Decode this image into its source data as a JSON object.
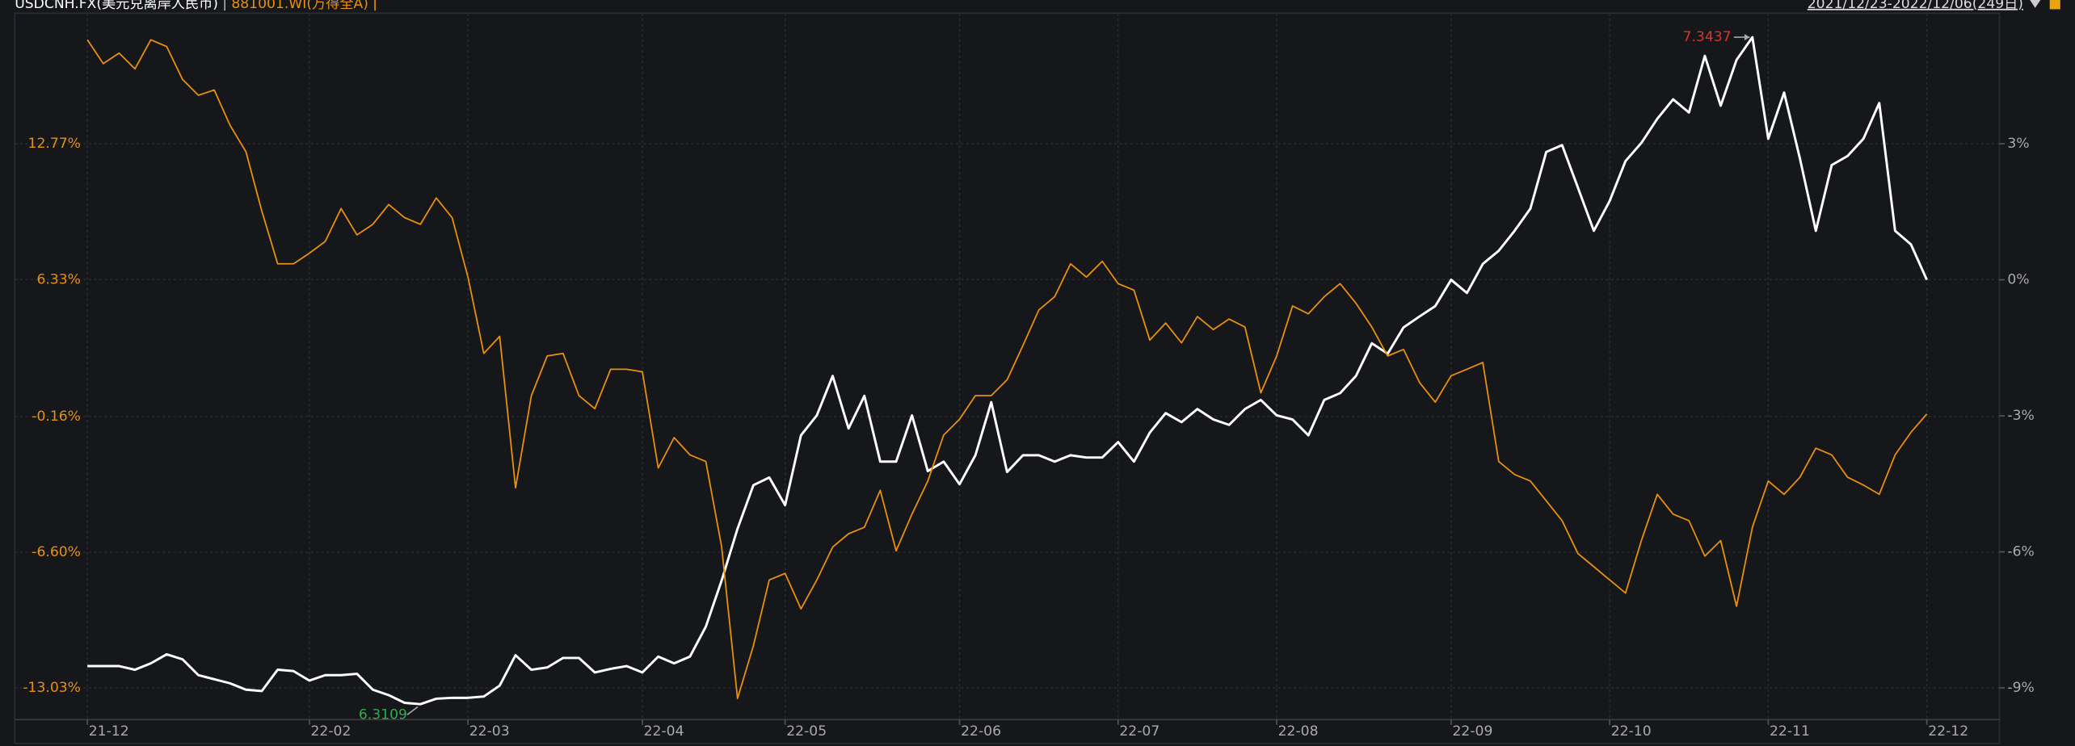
{
  "chart_data": {
    "type": "line",
    "date_range": "2021/12/23-2022/12/06(249日)",
    "categories": [
      "21-12",
      null,
      null,
      null,
      null,
      null,
      null,
      null,
      null,
      null,
      null,
      null,
      null,
      null,
      "22-02",
      null,
      null,
      null,
      null,
      null,
      null,
      null,
      null,
      null,
      "22-03",
      null,
      null,
      null,
      null,
      null,
      null,
      null,
      null,
      null,
      null,
      "22-04",
      null,
      null,
      null,
      null,
      null,
      null,
      null,
      null,
      "22-05",
      null,
      null,
      null,
      null,
      null,
      null,
      null,
      null,
      null,
      null,
      "22-06",
      null,
      null,
      null,
      null,
      null,
      null,
      null,
      null,
      null,
      "22-07",
      null,
      null,
      null,
      null,
      null,
      null,
      null,
      null,
      null,
      "22-08",
      null,
      null,
      null,
      null,
      null,
      null,
      null,
      null,
      null,
      null,
      "22-09",
      null,
      null,
      null,
      null,
      null,
      null,
      null,
      null,
      null,
      "22-10",
      null,
      null,
      null,
      null,
      null,
      null,
      null,
      null,
      null,
      "22-11",
      null,
      null,
      null,
      null,
      null,
      null,
      null,
      null,
      null,
      "22-12"
    ],
    "series": [
      {
        "name": "USDCNH.FX(美元兑离岸人民币)",
        "color": "#ffffff",
        "axis": "y2",
        "values": [
          -8.52,
          -8.52,
          -8.52,
          -8.6,
          -8.46,
          -8.26,
          -8.37,
          -8.72,
          -8.81,
          -8.9,
          -9.04,
          -9.07,
          -8.6,
          -8.63,
          -8.84,
          -8.72,
          -8.72,
          -8.69,
          -9.04,
          -9.16,
          -9.33,
          -9.36,
          -9.24,
          -9.22,
          -9.22,
          -9.19,
          -8.95,
          -8.28,
          -8.6,
          -8.55,
          -8.34,
          -8.34,
          -8.66,
          -8.58,
          -8.52,
          -8.66,
          -8.31,
          -8.46,
          -8.31,
          -7.65,
          -6.63,
          -5.49,
          -4.53,
          -4.36,
          -4.97,
          -3.43,
          -2.99,
          -2.12,
          -3.28,
          -2.56,
          -4.01,
          -4.01,
          -2.99,
          -4.22,
          -4.01,
          -4.51,
          -3.87,
          -2.7,
          -4.24,
          -3.87,
          -3.87,
          -4.01,
          -3.87,
          -3.92,
          -3.92,
          -3.58,
          -4.01,
          -3.37,
          -2.94,
          -3.14,
          -2.85,
          -3.08,
          -3.2,
          -2.85,
          -2.65,
          -2.99,
          -3.08,
          -3.43,
          -2.65,
          -2.5,
          -2.12,
          -1.4,
          -1.63,
          -1.05,
          -0.81,
          -0.58,
          0,
          -0.29,
          0.35,
          0.64,
          1.08,
          1.57,
          2.82,
          2.97,
          2.03,
          1.08,
          1.74,
          2.62,
          3.02,
          3.55,
          3.98,
          3.69,
          4.94,
          3.84,
          4.85,
          5.35,
          3.11,
          4.13,
          2.67,
          1.08,
          2.53,
          2.73,
          3.11,
          3.9,
          1.08,
          0.78,
          0
        ]
      },
      {
        "name": "881001.WI(万得全A)",
        "color": "#e8900c",
        "values": [
          17.7,
          16.57,
          17.07,
          16.32,
          17.7,
          17.38,
          15.82,
          15.07,
          15.32,
          13.64,
          12.39,
          9.58,
          7.08,
          7.08,
          7.58,
          8.14,
          9.7,
          8.45,
          8.95,
          9.89,
          9.27,
          8.95,
          10.2,
          9.27,
          6.45,
          2.83,
          3.64,
          -3.54,
          0.83,
          2.71,
          2.83,
          0.83,
          0.21,
          2.08,
          2.08,
          1.96,
          -2.6,
          -1.16,
          -1.98,
          -2.29,
          -6.35,
          -13.53,
          -11.03,
          -7.91,
          -7.6,
          -9.28,
          -7.91,
          -6.35,
          -5.72,
          -5.41,
          -3.66,
          -6.53,
          -4.79,
          -3.22,
          -1.04,
          -0.29,
          0.83,
          0.83,
          1.58,
          3.21,
          4.89,
          5.52,
          7.08,
          6.45,
          7.2,
          6.14,
          5.83,
          3.46,
          4.27,
          3.33,
          4.58,
          3.96,
          4.46,
          4.08,
          0.96,
          2.71,
          5.08,
          4.71,
          5.52,
          6.14,
          5.21,
          4.08,
          2.71,
          3.02,
          1.46,
          0.52,
          1.77,
          2.08,
          2.4,
          -2.29,
          -2.91,
          -3.22,
          -4.16,
          -5.1,
          -6.66,
          -7.28,
          -7.91,
          -8.53,
          -6.04,
          -3.85,
          -4.79,
          -5.1,
          -6.78,
          -6.04,
          -9.16,
          -5.41,
          -3.22,
          -3.85,
          -3.04,
          -1.66,
          -1.98,
          -3.04,
          -3.41,
          -3.85,
          -1.98,
          -0.91,
          -0.04
        ]
      }
    ],
    "ylim": [
      -14.53,
      18.96
    ],
    "yticks": [
      {
        "value": 12.77,
        "label": "12.77%"
      },
      {
        "value": 6.33,
        "label": "6.33%"
      },
      {
        "value": -0.16,
        "label": "-0.16%"
      },
      {
        "value": -6.6,
        "label": "-6.60%"
      },
      {
        "value": -13.03,
        "label": "-13.03%"
      }
    ],
    "y2lim": [
      -9.7,
      5.88
    ],
    "y2ticks": [
      {
        "value": 3,
        "label": "3%"
      },
      {
        "value": 0,
        "label": "0%"
      },
      {
        "value": -3,
        "label": "-3%"
      },
      {
        "value": -6,
        "label": "-6%"
      },
      {
        "value": -9,
        "label": "-9%"
      }
    ],
    "annotations": {
      "max": {
        "text": "7.3437",
        "color": "#e0302f"
      },
      "min": {
        "text": "6.3109",
        "color": "#2eab4d"
      }
    },
    "grid": true
  }
}
